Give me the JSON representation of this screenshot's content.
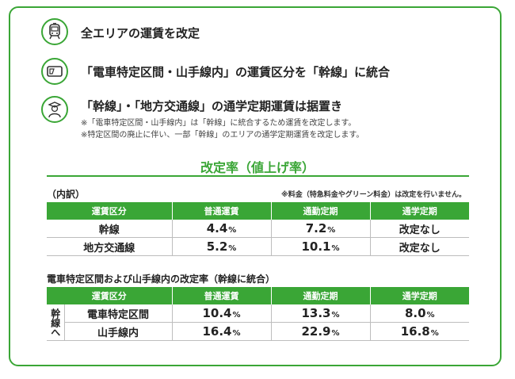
{
  "points": [
    {
      "icon": "train-front-icon",
      "text": "全エリアの運賃を改定"
    },
    {
      "icon": "ic-card-icon",
      "text": "「電車特定区間・山手線内」の運賃区分を「幹線」に統合"
    },
    {
      "icon": "student-icon",
      "text": "「幹線」・「地方交通線」の通学定期運賃は据置き"
    }
  ],
  "notes": [
    "※「電車特定区間・山手線内」は「幹線」に統合するため運賃を改定します。",
    "※特定区間の廃止に伴い、一部「幹線」のエリアの通学定期運賃を改定します。"
  ],
  "rate_title": "改定率（値上げ率）",
  "breakdown_label": "（内訳）",
  "fee_note": "※料金（特急料金やグリーン料金）は改定を行いません。",
  "table1": {
    "headers": [
      "運賃区分",
      "普通運賃",
      "通勤定期",
      "通学定期"
    ],
    "rows": [
      {
        "label": "幹線",
        "futsu": "4.4",
        "tsukin": "7.2",
        "tsugaku": "改定なし"
      },
      {
        "label": "地方交通線",
        "futsu": "5.2",
        "tsukin": "10.1",
        "tsugaku": "改定なし"
      }
    ],
    "unit": "%"
  },
  "sub_title": "電車特定区間および山手線内の改定率（幹線に統合）",
  "table2": {
    "headers": [
      "運賃区分",
      "普通運賃",
      "通勤定期",
      "通学定期"
    ],
    "group_label": "幹線へ",
    "rows": [
      {
        "label": "電車特定区間",
        "futsu": "10.4",
        "tsukin": "13.3",
        "tsugaku": "8.0"
      },
      {
        "label": "山手線内",
        "futsu": "16.4",
        "tsukin": "22.9",
        "tsugaku": "16.8"
      }
    ],
    "unit": "%"
  },
  "colors": {
    "accent": "#3aa636",
    "border": "#bdbdbd"
  }
}
